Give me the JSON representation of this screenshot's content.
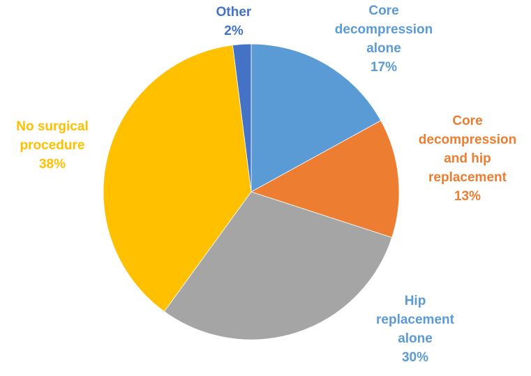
{
  "chart_data": {
    "type": "pie",
    "title": "",
    "slices": [
      {
        "name": "Core decompression alone",
        "label_lines": [
          "Core",
          "decompression",
          "alone"
        ],
        "value": 17,
        "value_label": "17%",
        "color": "#5B9BD5"
      },
      {
        "name": "Core decompression and hip replacement",
        "label_lines": [
          "Core",
          "decompression",
          "and hip",
          "replacement"
        ],
        "value": 13,
        "value_label": "13%",
        "color": "#ED7D31"
      },
      {
        "name": "Hip replacement alone",
        "label_lines": [
          "Hip",
          "replacement",
          "alone"
        ],
        "value": 30,
        "value_label": "30%",
        "color": "#A5A5A5"
      },
      {
        "name": "No surgical procedure",
        "label_lines": [
          "No surgical",
          "procedure"
        ],
        "value": 38,
        "value_label": "38%",
        "color": "#FFC000"
      },
      {
        "name": "Other",
        "label_lines": [
          "Other"
        ],
        "value": 2,
        "value_label": "2%",
        "color": "#4472C4"
      }
    ],
    "label_color_hip_replacement": "#5B9BD5",
    "start_angle": "12 o'clock",
    "direction": "clockwise",
    "legend": "none"
  }
}
